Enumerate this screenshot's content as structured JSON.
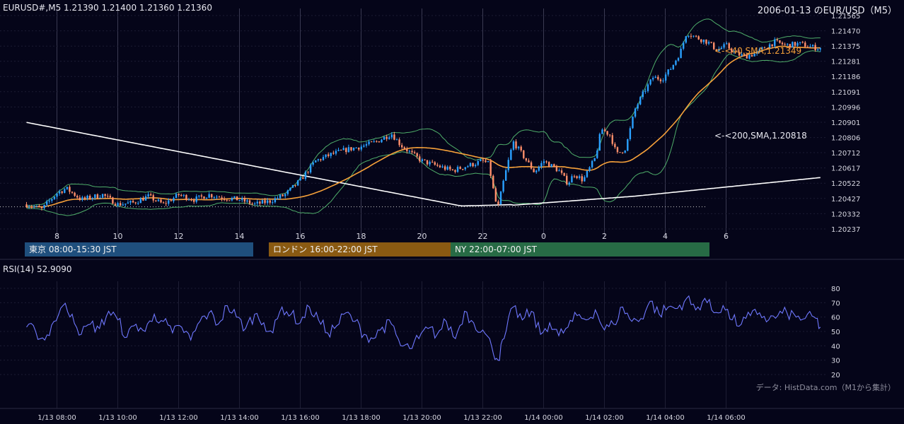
{
  "header": {
    "symbol_info": "EURUSD#,M5 1.21390 1.21400 1.21360 1.21360",
    "date_title": "2006-01-13 のEUR/USD（M5）"
  },
  "price_axis": {
    "ticks": [
      "1.21565",
      "1.21470",
      "1.21375",
      "1.21281",
      "1.21186",
      "1.21091",
      "1.20996",
      "1.20901",
      "1.20806",
      "1.20712",
      "1.20617",
      "1.20522",
      "1.20427",
      "1.20332",
      "1.20237"
    ],
    "min": 1.20237,
    "max": 1.21565
  },
  "time_axis": {
    "hour_labels": [
      "8",
      "10",
      "12",
      "14",
      "16",
      "18",
      "20",
      "22",
      "0",
      "2",
      "4",
      "6"
    ],
    "date_labels": [
      "1/13 08:00",
      "1/13 10:00",
      "1/13 12:00",
      "1/13 14:00",
      "1/13 16:00",
      "1/13 18:00",
      "1/13 20:00",
      "1/13 22:00",
      "1/14 00:00",
      "1/14 02:00",
      "1/14 04:00",
      "1/14 06:00"
    ]
  },
  "sessions": [
    {
      "label": "東京 08:00-15:30 JST",
      "color": "#1f4f7d"
    },
    {
      "label": "ロンドン 16:00-22:00 JST",
      "color": "#8a5a12"
    },
    {
      "label": "NY 22:00-07:00 JST",
      "color": "#276b45"
    }
  ],
  "indicators": {
    "sma40_label": "<-<40,SMA,1.21349",
    "sma200_label": "<-<200,SMA,1.20818",
    "sma40_color": "#f7a13a",
    "sma200_color": "#ffffff",
    "bollinger_color": "#4fae6a",
    "up_color": "#2aa0ff",
    "down_color": "#ff8f6b"
  },
  "rsi": {
    "label": "RSI(14) 52.9090",
    "ticks": [
      "80",
      "70",
      "60",
      "50",
      "40",
      "30",
      "20"
    ],
    "color": "#6f78ff"
  },
  "footer": {
    "source": "データ: HistData.com（M1から集計）"
  },
  "chart_data": [
    {
      "type": "candlestick",
      "title": "2006-01-13 のEUR/USD（M5）",
      "x_unit": "hours after 1/13 07:00 JST (5-minute bars)",
      "ylim": [
        1.20237,
        1.21565
      ],
      "series": [
        {
          "name": "40,SMA",
          "last": 1.21349
        },
        {
          "name": "200,SMA",
          "last": 1.20818
        }
      ],
      "close_path": [
        [
          0,
          1.2039
        ],
        [
          0.5,
          1.2036
        ],
        [
          1.0,
          1.2046
        ],
        [
          1.3,
          1.2049
        ],
        [
          1.8,
          1.2042
        ],
        [
          2.5,
          1.2045
        ],
        [
          3,
          1.2039
        ],
        [
          3.5,
          1.204
        ],
        [
          4,
          1.2044
        ],
        [
          4.5,
          1.2039
        ],
        [
          5,
          1.2045
        ],
        [
          5.5,
          1.2042
        ],
        [
          6,
          1.2045
        ],
        [
          6.5,
          1.2043
        ],
        [
          7,
          1.2042
        ],
        [
          7.5,
          1.2039
        ],
        [
          8,
          1.2041
        ],
        [
          8.5,
          1.2045
        ],
        [
          9,
          1.2054
        ],
        [
          9.5,
          1.2066
        ],
        [
          10,
          1.207
        ],
        [
          10.5,
          1.2073
        ],
        [
          11,
          1.2075
        ],
        [
          11.5,
          1.2078
        ],
        [
          12,
          1.2083
        ],
        [
          12.3,
          1.2076
        ],
        [
          12.7,
          1.207
        ],
        [
          13,
          1.2066
        ],
        [
          13.5,
          1.2063
        ],
        [
          14,
          1.206
        ],
        [
          14.5,
          1.2063
        ],
        [
          15,
          1.2066
        ],
        [
          15.2,
          1.2064
        ],
        [
          15.4,
          1.2042
        ],
        [
          15.5,
          1.2037
        ],
        [
          15.7,
          1.2055
        ],
        [
          16,
          1.2078
        ],
        [
          16.3,
          1.207
        ],
        [
          16.7,
          1.2059
        ],
        [
          17,
          1.2066
        ],
        [
          17.5,
          1.206
        ],
        [
          17.8,
          1.2052
        ],
        [
          18,
          1.2058
        ],
        [
          18.3,
          1.2054
        ],
        [
          18.7,
          1.2068
        ],
        [
          18.9,
          1.2086
        ],
        [
          19.2,
          1.2082
        ],
        [
          19.4,
          1.207
        ],
        [
          19.7,
          1.2074
        ],
        [
          20,
          1.2098
        ],
        [
          20.3,
          1.2109
        ],
        [
          20.6,
          1.2118
        ],
        [
          20.9,
          1.2117
        ],
        [
          21.2,
          1.2124
        ],
        [
          21.5,
          1.2134
        ],
        [
          21.7,
          1.2146
        ],
        [
          22,
          1.2143
        ],
        [
          22.4,
          1.214
        ],
        [
          22.7,
          1.2135
        ],
        [
          23,
          1.2138
        ],
        [
          23.3,
          1.2133
        ],
        [
          23.6,
          1.2131
        ],
        [
          24,
          1.2133
        ],
        [
          24.3,
          1.2137
        ],
        [
          24.6,
          1.214
        ],
        [
          25,
          1.2138
        ],
        [
          25.4,
          1.2139
        ],
        [
          25.8,
          1.2137
        ],
        [
          26.1,
          1.2136
        ]
      ]
    },
    {
      "type": "line",
      "title": "RSI(14) 52.9090",
      "ylim": [
        20,
        80
      ],
      "x": [
        0,
        0.3,
        0.6,
        0.9,
        1.2,
        1.5,
        1.8,
        2.1,
        2.4,
        2.7,
        3.0,
        3.3,
        3.6,
        3.9,
        4.2,
        4.5,
        4.8,
        5.1,
        5.4,
        5.7,
        6.0,
        6.3,
        6.6,
        6.9,
        7.2,
        7.5,
        7.8,
        8.1,
        8.4,
        8.7,
        9.0,
        9.3,
        9.6,
        9.9,
        10.2,
        10.5,
        10.8,
        11.1,
        11.4,
        11.7,
        12.0,
        12.3,
        12.6,
        12.9,
        13.2,
        13.5,
        13.8,
        14.1,
        14.4,
        14.7,
        15.0,
        15.3,
        15.5,
        15.7,
        16.0,
        16.3,
        16.6,
        16.9,
        17.2,
        17.5,
        17.8,
        18.1,
        18.4,
        18.7,
        19.0,
        19.3,
        19.6,
        19.9,
        20.2,
        20.5,
        20.8,
        21.1,
        21.4,
        21.7,
        22.0,
        22.3,
        22.6,
        22.9,
        23.2,
        23.5,
        23.8,
        24.1,
        24.4,
        24.7,
        25.0,
        25.3,
        25.6,
        25.9,
        26.1
      ],
      "values": [
        53,
        50,
        44,
        57,
        68,
        62,
        48,
        55,
        52,
        64,
        58,
        46,
        55,
        50,
        62,
        57,
        49,
        53,
        44,
        57,
        63,
        55,
        68,
        60,
        52,
        62,
        56,
        49,
        67,
        62,
        56,
        67,
        58,
        49,
        54,
        63,
        57,
        48,
        45,
        53,
        55,
        40,
        38,
        45,
        52,
        48,
        57,
        45,
        64,
        56,
        51,
        39,
        30,
        45,
        67,
        58,
        64,
        48,
        56,
        47,
        53,
        61,
        58,
        65,
        51,
        55,
        67,
        57,
        59,
        71,
        62,
        67,
        66,
        73,
        65,
        73,
        63,
        68,
        58,
        55,
        61,
        63,
        58,
        61,
        63,
        60,
        59,
        60,
        53
      ]
    }
  ]
}
